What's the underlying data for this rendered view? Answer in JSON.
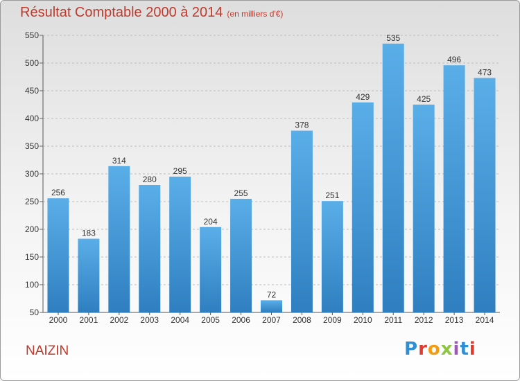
{
  "header": {
    "title": "Résultat Comptable 2000 à 2014",
    "subtitle": "(en milliers d'€)"
  },
  "footer": {
    "place": "NAIZIN",
    "logo_text": "Proxiti",
    "logo_colors": [
      "#2e8fd4",
      "#e23b2f",
      "#f39c12",
      "#8dc63f",
      "#9b59b6",
      "#2e8fd4",
      "#e23b2f"
    ]
  },
  "colors": {
    "bar_top": "#5aaee8",
    "bar_bottom": "#2f7fc0",
    "accent": "#c0392b"
  },
  "chart_data": {
    "type": "bar",
    "categories": [
      "2000",
      "2001",
      "2002",
      "2003",
      "2004",
      "2005",
      "2006",
      "2007",
      "2008",
      "2009",
      "2010",
      "2011",
      "2012",
      "2013",
      "2014"
    ],
    "values": [
      256,
      183,
      314,
      280,
      295,
      204,
      255,
      72,
      378,
      251,
      429,
      535,
      425,
      496,
      473
    ],
    "ylim": [
      50,
      550
    ],
    "yticks": [
      50,
      100,
      150,
      200,
      250,
      300,
      350,
      400,
      450,
      500,
      550
    ],
    "grid": true
  }
}
